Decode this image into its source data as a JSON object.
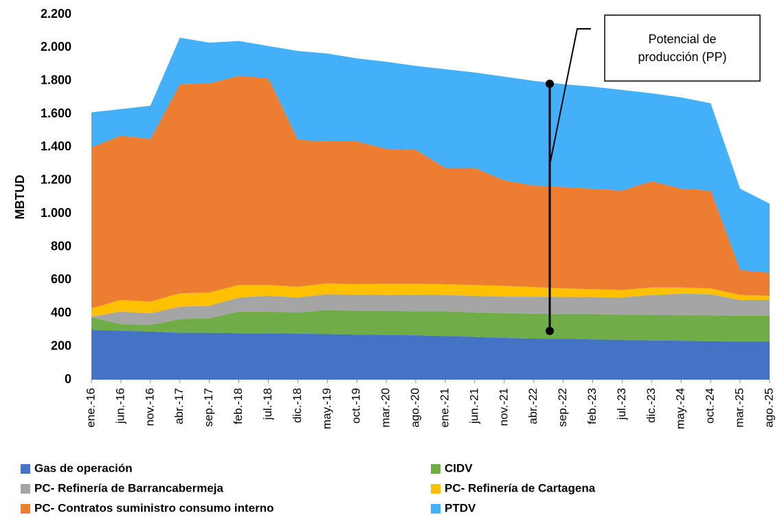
{
  "chart_data": {
    "type": "stacked-area",
    "y_label": "MBTUD",
    "annotation": "Potencial de producción (PP)",
    "categories": [
      "ene.-16",
      "jun.-16",
      "nov.-16",
      "abr.-17",
      "sep.-17",
      "feb.-18",
      "jul.-18",
      "dic.-18",
      "may.-19",
      "oct.-19",
      "mar.-20",
      "ago.-20",
      "ene.-21",
      "jun.-21",
      "nov.-21",
      "abr.-22",
      "sep.-22",
      "feb.-23",
      "jul.-23",
      "dic.-23",
      "may.-24",
      "oct.-24",
      "mar.-25",
      "ago.-25"
    ],
    "ylim": [
      0,
      2200
    ],
    "yticks": [
      0,
      200,
      400,
      600,
      800,
      {
        "value": 1000,
        "label": "1.000"
      },
      {
        "value": 1200,
        "label": "1.200"
      },
      {
        "value": 1400,
        "label": "1.400"
      },
      {
        "value": 1600,
        "label": "1.600"
      },
      {
        "value": 1800,
        "label": "1.800"
      },
      {
        "value": 2000,
        "label": "2.000"
      },
      {
        "value": 2200,
        "label": "2.200"
      }
    ],
    "series": [
      {
        "name": "Gas de operación",
        "color": "#4472c4",
        "values": [
          300,
          295,
          290,
          283,
          283,
          280,
          280,
          278,
          275,
          272,
          270,
          268,
          263,
          258,
          252,
          248,
          247,
          243,
          240,
          237,
          235,
          232,
          230,
          230
        ]
      },
      {
        "name": "CIDV",
        "color": "#70ad47",
        "values": [
          75,
          40,
          40,
          82,
          87,
          130,
          130,
          127,
          145,
          143,
          145,
          144,
          149,
          147,
          148,
          150,
          148,
          152,
          152,
          153,
          153,
          156,
          155,
          155
        ]
      },
      {
        "name": "PC- Refinería de Barrancabermeja",
        "color": "#a5a5a5",
        "values": [
          5,
          75,
          70,
          75,
          75,
          85,
          95,
          90,
          95,
          97,
          95,
          100,
          98,
          100,
          100,
          102,
          103,
          103,
          103,
          120,
          130,
          127,
          95,
          95
        ]
      },
      {
        "name": "PC- Refinería de Cartagena",
        "color": "#ffc000",
        "values": [
          50,
          70,
          70,
          80,
          80,
          75,
          65,
          65,
          65,
          63,
          68,
          66,
          65,
          65,
          65,
          58,
          52,
          47,
          45,
          45,
          37,
          35,
          30,
          25
        ]
      },
      {
        "name": "PC- Contratos suministro consumo interno",
        "color": "#ed7d31",
        "values": [
          970,
          990,
          980,
          1260,
          1260,
          1260,
          1245,
          885,
          855,
          860,
          812,
          807,
          700,
          705,
          635,
          612,
          610,
          605,
          600,
          640,
          595,
          590,
          150,
          140
        ]
      },
      {
        "name": "PTDV",
        "color": "#45b0fa",
        "values": [
          210,
          160,
          200,
          280,
          245,
          210,
          195,
          535,
          530,
          500,
          525,
          505,
          595,
          575,
          625,
          630,
          620,
          615,
          605,
          530,
          550,
          525,
          490,
          415
        ]
      }
    ]
  }
}
